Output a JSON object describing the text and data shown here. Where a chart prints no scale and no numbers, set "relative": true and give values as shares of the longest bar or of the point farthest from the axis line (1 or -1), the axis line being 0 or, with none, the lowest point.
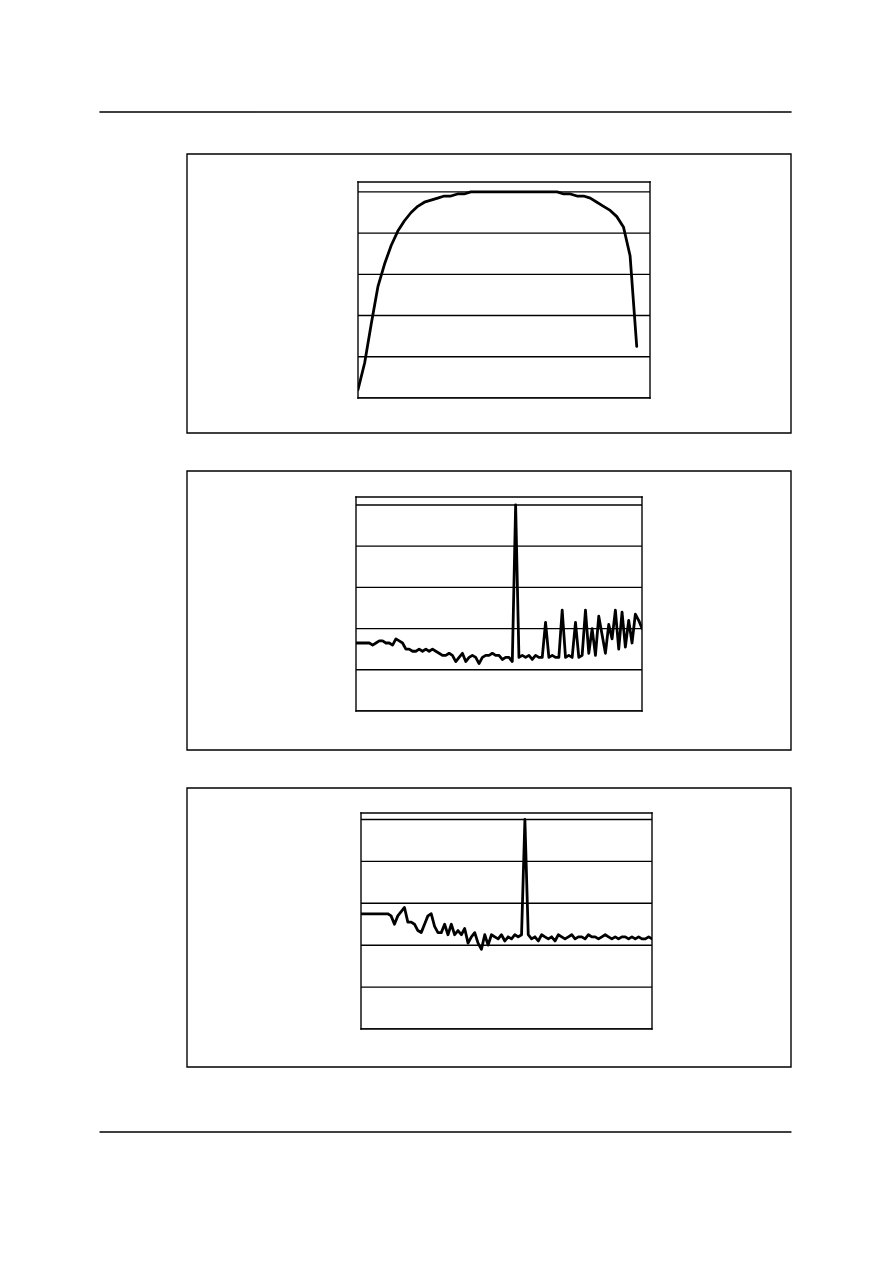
{
  "chart_data": [
    {
      "type": "line",
      "relative": true,
      "grid": "y",
      "marker": "none",
      "line_style": "solid",
      "tick_labels": false,
      "categories": [
        null,
        null,
        null,
        null,
        null,
        null,
        null,
        null,
        null,
        null,
        null,
        null,
        null,
        null,
        null,
        null,
        null,
        null,
        null,
        null,
        null,
        null,
        null,
        null,
        null,
        null,
        null,
        null,
        null,
        null,
        null,
        null,
        null,
        null,
        null,
        null,
        null,
        null,
        null,
        null,
        null,
        null,
        null,
        null,
        null
      ],
      "series": [
        {
          "color": "#000000",
          "values": [
            0.04,
            0.17,
            0.36,
            0.54,
            0.65,
            0.74,
            0.81,
            0.86,
            0.9,
            0.93,
            0.95,
            0.96,
            0.97,
            0.98,
            0.98,
            0.99,
            0.99,
            1,
            1,
            1,
            1,
            1,
            1,
            1,
            1,
            1,
            1,
            1,
            1,
            1,
            1,
            0.99,
            0.99,
            0.98,
            0.98,
            0.97,
            0.95,
            0.93,
            0.91,
            0.88,
            0.83,
            0.69,
            0.25,
            null,
            null
          ]
        }
      ]
    },
    {
      "type": "line",
      "relative": true,
      "grid": "y",
      "marker": "none",
      "line_style": "solid",
      "tick_labels": false,
      "categories": [
        null,
        null,
        null,
        null,
        null,
        null,
        null,
        null,
        null,
        null,
        null,
        null,
        null,
        null,
        null,
        null,
        null,
        null,
        null,
        null,
        null,
        null,
        null,
        null,
        null,
        null,
        null,
        null,
        null,
        null,
        null,
        null,
        null,
        null,
        null,
        null,
        null,
        null,
        null,
        null,
        null,
        null,
        null,
        null,
        null,
        null,
        null,
        null,
        null,
        null,
        null,
        null,
        null,
        null,
        null,
        null,
        null,
        null,
        null,
        null,
        null,
        null,
        null,
        null,
        null,
        null,
        null,
        null,
        null,
        null,
        null,
        null,
        null,
        null,
        null,
        null,
        null,
        null,
        null,
        null,
        null,
        null,
        null,
        null,
        null,
        null,
        null
      ],
      "series": [
        {
          "color": "#000000",
          "values": [
            0.33,
            0.33,
            0.33,
            0.33,
            0.33,
            0.32,
            0.33,
            0.34,
            0.34,
            0.33,
            0.33,
            0.32,
            0.35,
            0.34,
            0.33,
            0.3,
            0.3,
            0.29,
            0.29,
            0.3,
            0.29,
            0.3,
            0.29,
            0.3,
            0.29,
            0.28,
            0.27,
            0.27,
            0.28,
            0.27,
            0.24,
            0.26,
            0.28,
            0.24,
            0.26,
            0.27,
            0.26,
            0.23,
            0.26,
            0.27,
            0.27,
            0.28,
            0.27,
            0.27,
            0.25,
            0.26,
            0.26,
            0.24,
            1,
            0.26,
            0.27,
            0.26,
            0.27,
            0.25,
            0.27,
            0.26,
            0.26,
            0.43,
            0.26,
            0.27,
            0.26,
            0.26,
            0.49,
            0.26,
            0.27,
            0.26,
            0.43,
            0.26,
            0.27,
            0.49,
            0.28,
            0.4,
            0.27,
            0.46,
            0.37,
            0.28,
            0.42,
            0.35,
            0.49,
            0.3,
            0.48,
            0.31,
            0.44,
            0.33,
            0.47,
            0.44,
            0.4
          ]
        }
      ]
    },
    {
      "type": "line",
      "relative": true,
      "grid": "y",
      "marker": "none",
      "line_style": "solid",
      "tick_labels": false,
      "categories": [
        null,
        null,
        null,
        null,
        null,
        null,
        null,
        null,
        null,
        null,
        null,
        null,
        null,
        null,
        null,
        null,
        null,
        null,
        null,
        null,
        null,
        null,
        null,
        null,
        null,
        null,
        null,
        null,
        null,
        null,
        null,
        null,
        null,
        null,
        null,
        null,
        null,
        null,
        null,
        null,
        null,
        null,
        null,
        null,
        null,
        null,
        null,
        null,
        null,
        null,
        null,
        null,
        null,
        null,
        null,
        null,
        null,
        null,
        null,
        null,
        null,
        null,
        null,
        null,
        null,
        null,
        null,
        null,
        null,
        null,
        null,
        null,
        null,
        null,
        null,
        null,
        null,
        null,
        null,
        null,
        null,
        null,
        null,
        null,
        null,
        null,
        null,
        null
      ],
      "series": [
        {
          "color": "#000000",
          "values": [
            0.55,
            0.55,
            0.55,
            0.55,
            0.55,
            0.55,
            0.55,
            0.55,
            0.55,
            0.54,
            0.5,
            0.54,
            0.56,
            0.58,
            0.51,
            0.51,
            0.5,
            0.47,
            0.46,
            0.5,
            0.54,
            0.55,
            0.49,
            0.46,
            0.46,
            0.5,
            0.45,
            0.5,
            0.45,
            0.47,
            0.45,
            0.48,
            0.41,
            0.44,
            0.46,
            0.41,
            0.38,
            0.45,
            0.4,
            0.45,
            0.44,
            0.43,
            0.45,
            0.42,
            0.44,
            0.43,
            0.45,
            0.44,
            0.45,
            1,
            0.45,
            0.43,
            0.44,
            0.42,
            0.45,
            0.44,
            0.43,
            0.44,
            0.42,
            0.45,
            0.44,
            0.43,
            0.44,
            0.45,
            0.43,
            0.44,
            0.44,
            0.43,
            0.45,
            0.44,
            0.44,
            0.43,
            0.44,
            0.45,
            0.44,
            0.43,
            0.44,
            0.43,
            0.44,
            0.44,
            0.43,
            0.44,
            0.43,
            0.44,
            0.43,
            0.43,
            0.44,
            0.43
          ]
        }
      ]
    }
  ]
}
